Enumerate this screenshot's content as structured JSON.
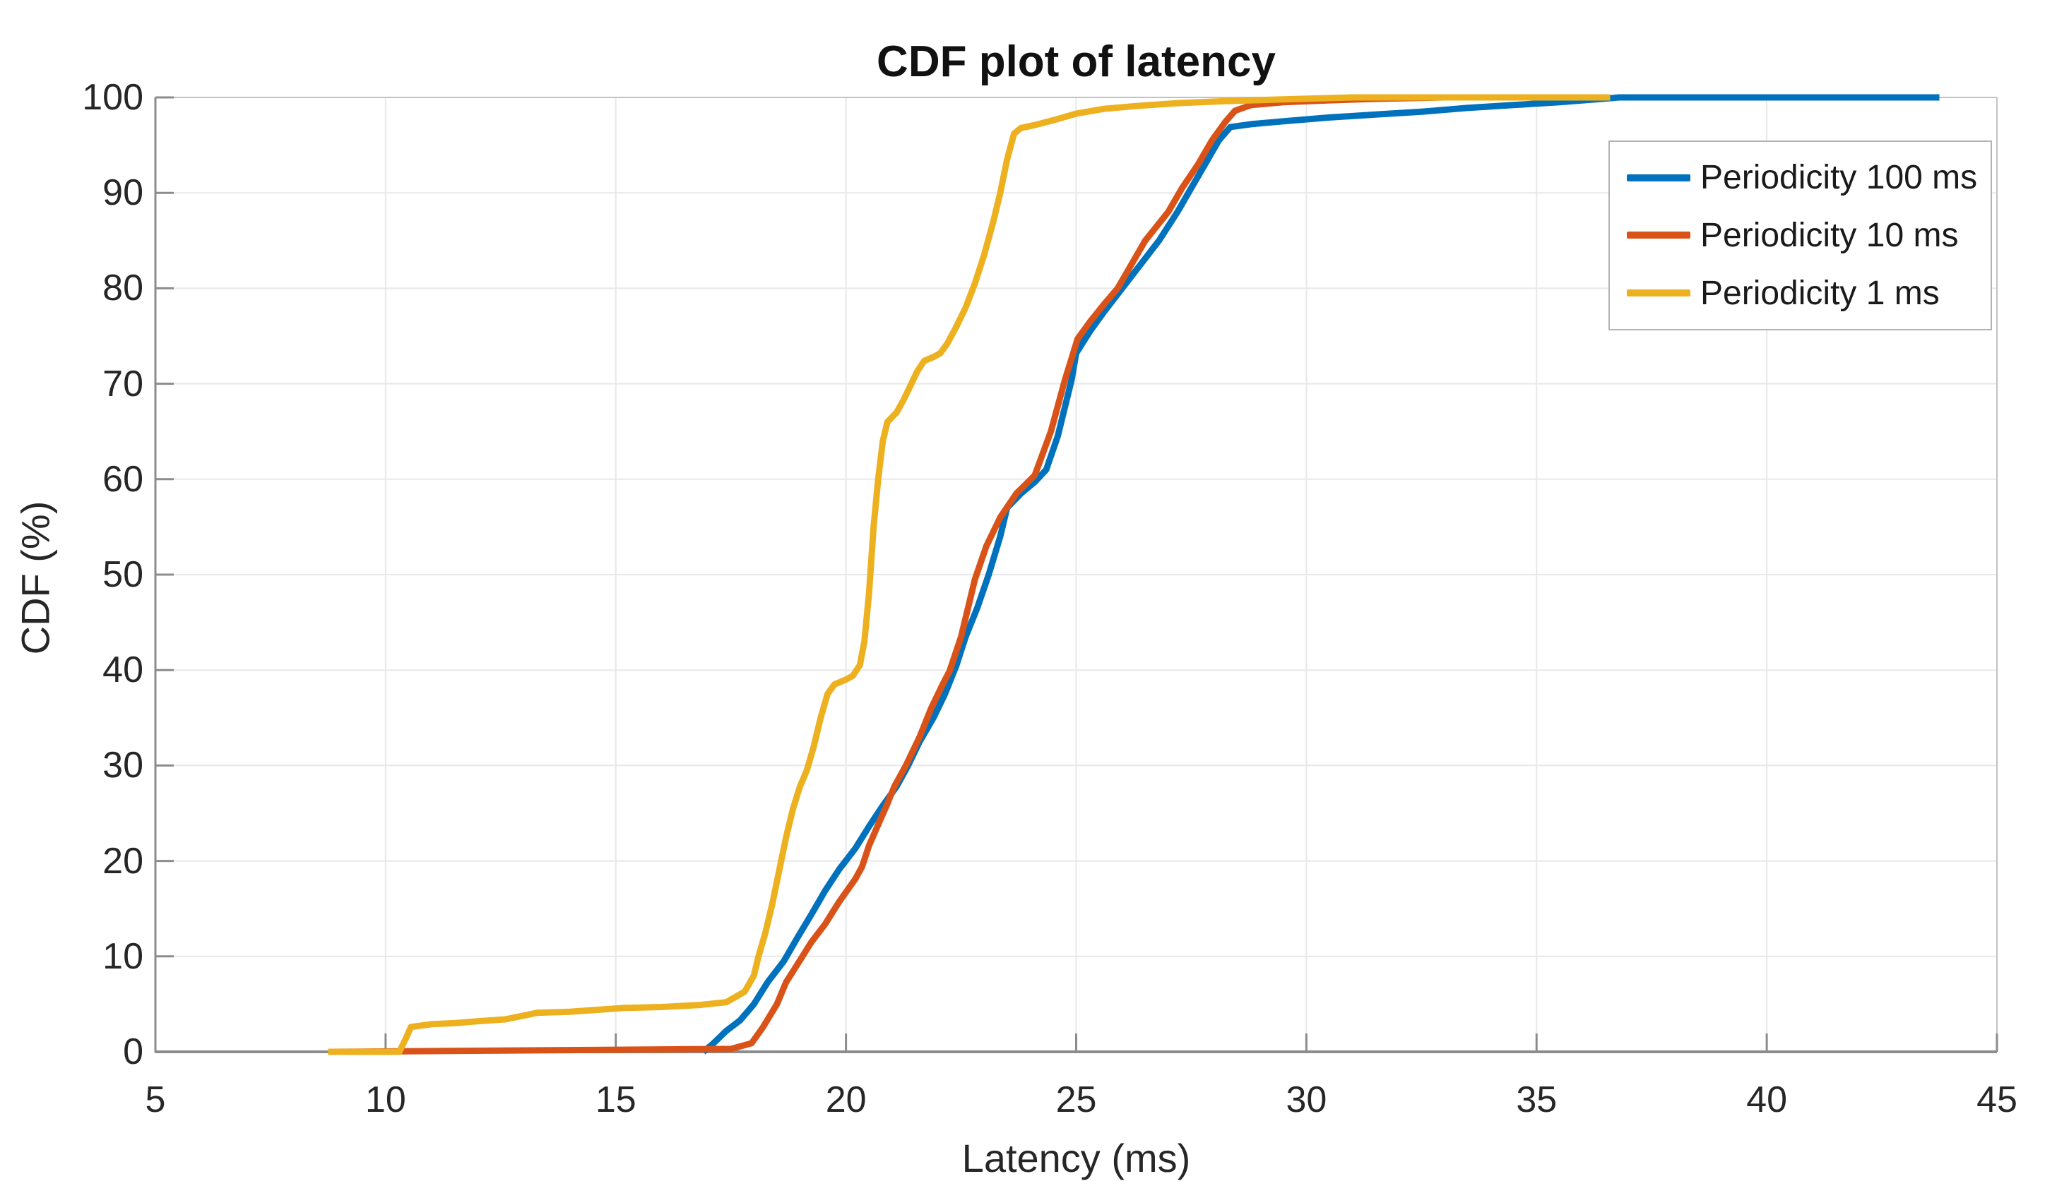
{
  "title": "CDF plot of latency",
  "axes": {
    "x": {
      "label": "Latency (ms)",
      "min": 5,
      "max": 45,
      "ticks": [
        5,
        10,
        15,
        20,
        25,
        30,
        35,
        40,
        45
      ]
    },
    "y": {
      "label": "CDF (%)",
      "min": 0,
      "max": 100,
      "ticks": [
        0,
        10,
        20,
        30,
        40,
        50,
        60,
        70,
        80,
        90,
        100
      ]
    }
  },
  "legend": {
    "position": "top-right",
    "items": [
      {
        "label": "Periodicity 100 ms",
        "color": "#0072BD"
      },
      {
        "label": "Periodicity 10 ms",
        "color": "#D95319"
      },
      {
        "label": "Periodicity 1 ms",
        "color": "#EDB120"
      }
    ]
  },
  "colors": {
    "grid": "#e8e8e8",
    "spine_main": "#8c8c8c",
    "spine_box": "#c2c2c2",
    "tick": "#8c8c8c",
    "text": "#262626"
  },
  "chart_data": {
    "type": "line",
    "title": "CDF plot of latency",
    "xlabel": "Latency (ms)",
    "ylabel": "CDF (%)",
    "xlim": [
      5,
      45
    ],
    "ylim": [
      0,
      100
    ],
    "grid": true,
    "legend_position": "top-right",
    "series": [
      {
        "name": "Periodicity 100 ms",
        "color": "#0072BD",
        "points": [
          [
            16.9,
            0
          ],
          [
            17.1,
            0.8
          ],
          [
            17.4,
            2.2
          ],
          [
            17.7,
            3.3
          ],
          [
            18.0,
            5.0
          ],
          [
            18.3,
            7.3
          ],
          [
            18.65,
            9.5
          ],
          [
            18.95,
            12
          ],
          [
            19.25,
            14.4
          ],
          [
            19.55,
            16.9
          ],
          [
            19.85,
            19.1
          ],
          [
            20.2,
            21.3
          ],
          [
            20.5,
            23.6
          ],
          [
            20.8,
            25.8
          ],
          [
            21.1,
            27.8
          ],
          [
            21.35,
            30
          ],
          [
            21.6,
            32.5
          ],
          [
            21.9,
            35
          ],
          [
            22.15,
            37.5
          ],
          [
            22.4,
            40.5
          ],
          [
            22.6,
            43.5
          ],
          [
            22.85,
            46.5
          ],
          [
            23.1,
            50
          ],
          [
            23.35,
            54
          ],
          [
            23.5,
            57
          ],
          [
            23.8,
            58.5
          ],
          [
            24.1,
            59.7
          ],
          [
            24.35,
            61
          ],
          [
            24.6,
            64.5
          ],
          [
            24.9,
            70.4
          ],
          [
            25.0,
            73.2
          ],
          [
            25.3,
            75.5
          ],
          [
            25.6,
            77.5
          ],
          [
            26.0,
            80
          ],
          [
            26.4,
            82.5
          ],
          [
            26.8,
            85
          ],
          [
            27.2,
            88
          ],
          [
            27.5,
            90.5
          ],
          [
            27.8,
            93
          ],
          [
            28.1,
            95.5
          ],
          [
            28.35,
            96.9
          ],
          [
            28.8,
            97.2
          ],
          [
            29.5,
            97.5
          ],
          [
            30.5,
            97.9
          ],
          [
            31.5,
            98.2
          ],
          [
            32.5,
            98.5
          ],
          [
            33.5,
            98.9
          ],
          [
            34.5,
            99.2
          ],
          [
            35.5,
            99.5
          ],
          [
            36.3,
            99.8
          ],
          [
            36.8,
            100
          ],
          [
            43.75,
            100
          ]
        ]
      },
      {
        "name": "Periodicity 10 ms",
        "color": "#D95319",
        "points": [
          [
            8.8,
            0
          ],
          [
            17.5,
            0.3
          ],
          [
            17.95,
            0.9
          ],
          [
            18.2,
            2.6
          ],
          [
            18.5,
            5.0
          ],
          [
            18.7,
            7.3
          ],
          [
            18.95,
            9.2
          ],
          [
            19.25,
            11.5
          ],
          [
            19.55,
            13.4
          ],
          [
            19.85,
            15.7
          ],
          [
            20.2,
            18.1
          ],
          [
            20.35,
            19.4
          ],
          [
            20.5,
            21.6
          ],
          [
            20.7,
            23.8
          ],
          [
            20.9,
            26
          ],
          [
            21.05,
            27.8
          ],
          [
            21.3,
            30
          ],
          [
            21.6,
            33
          ],
          [
            21.85,
            36
          ],
          [
            22.1,
            38.5
          ],
          [
            22.25,
            39.9
          ],
          [
            22.5,
            43.5
          ],
          [
            22.8,
            49.5
          ],
          [
            23.05,
            53
          ],
          [
            23.35,
            56
          ],
          [
            23.7,
            58.5
          ],
          [
            24.1,
            60.4
          ],
          [
            24.45,
            65
          ],
          [
            24.75,
            70.3
          ],
          [
            25.03,
            74.7
          ],
          [
            25.3,
            76.5
          ],
          [
            25.6,
            78.3
          ],
          [
            25.9,
            80
          ],
          [
            26.5,
            85
          ],
          [
            27.0,
            88
          ],
          [
            27.3,
            90.5
          ],
          [
            27.65,
            93
          ],
          [
            27.95,
            95.5
          ],
          [
            28.25,
            97.5
          ],
          [
            28.45,
            98.6
          ],
          [
            28.8,
            99.2
          ],
          [
            29.5,
            99.5
          ],
          [
            30.5,
            99.7
          ],
          [
            31.5,
            99.85
          ],
          [
            33.0,
            100
          ],
          [
            34.2,
            100
          ]
        ]
      },
      {
        "name": "Periodicity 1 ms",
        "color": "#EDB120",
        "points": [
          [
            8.75,
            0
          ],
          [
            10.3,
            0
          ],
          [
            10.45,
            1.5
          ],
          [
            10.55,
            2.6
          ],
          [
            11.0,
            2.9
          ],
          [
            11.5,
            3.0
          ],
          [
            12.0,
            3.2
          ],
          [
            12.6,
            3.4
          ],
          [
            13.1,
            3.9
          ],
          [
            13.3,
            4.1
          ],
          [
            14.0,
            4.2
          ],
          [
            14.6,
            4.4
          ],
          [
            15.2,
            4.6
          ],
          [
            16.0,
            4.7
          ],
          [
            16.8,
            4.9
          ],
          [
            17.4,
            5.2
          ],
          [
            17.8,
            6.3
          ],
          [
            18.0,
            8.0
          ],
          [
            18.1,
            10
          ],
          [
            18.25,
            12.5
          ],
          [
            18.4,
            15.5
          ],
          [
            18.55,
            19
          ],
          [
            18.7,
            22.5
          ],
          [
            18.85,
            25.5
          ],
          [
            19.0,
            27.8
          ],
          [
            19.15,
            29.5
          ],
          [
            19.3,
            32
          ],
          [
            19.45,
            35
          ],
          [
            19.6,
            37.5
          ],
          [
            19.75,
            38.5
          ],
          [
            20.0,
            39.0
          ],
          [
            20.15,
            39.4
          ],
          [
            20.3,
            40.5
          ],
          [
            20.4,
            43
          ],
          [
            20.5,
            48
          ],
          [
            20.6,
            55
          ],
          [
            20.7,
            60
          ],
          [
            20.8,
            64
          ],
          [
            20.9,
            66
          ],
          [
            21.1,
            67
          ],
          [
            21.25,
            68.3
          ],
          [
            21.4,
            69.8
          ],
          [
            21.55,
            71.3
          ],
          [
            21.7,
            72.4
          ],
          [
            21.9,
            72.8
          ],
          [
            22.05,
            73.2
          ],
          [
            22.2,
            74.2
          ],
          [
            22.4,
            76
          ],
          [
            22.6,
            78
          ],
          [
            22.8,
            80.5
          ],
          [
            23.0,
            83.5
          ],
          [
            23.2,
            87
          ],
          [
            23.35,
            90
          ],
          [
            23.5,
            93.5
          ],
          [
            23.65,
            96.2
          ],
          [
            23.8,
            96.8
          ],
          [
            24.1,
            97.1
          ],
          [
            24.5,
            97.6
          ],
          [
            25.0,
            98.3
          ],
          [
            25.6,
            98.8
          ],
          [
            26.3,
            99.1
          ],
          [
            27.2,
            99.4
          ],
          [
            28.2,
            99.6
          ],
          [
            29.5,
            99.8
          ],
          [
            31.0,
            100
          ],
          [
            36.6,
            100
          ]
        ]
      }
    ]
  }
}
